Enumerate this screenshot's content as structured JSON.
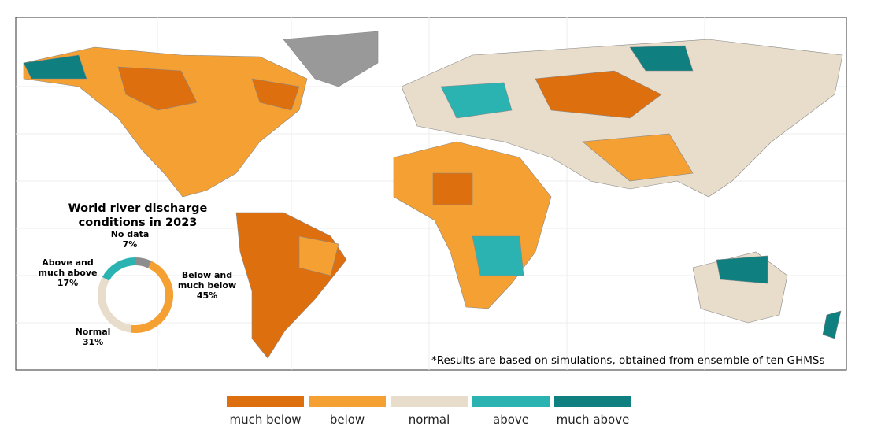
{
  "chart_data": {
    "type": "pie",
    "title": "World river discharge conditions in 2023",
    "categories": [
      "No data",
      "Below and much below",
      "Normal",
      "Above and much above"
    ],
    "values": [
      7,
      45,
      31,
      17
    ],
    "value_labels": [
      "7%",
      "45%",
      "31%",
      "17%"
    ],
    "colors": [
      "#8c8c8c",
      "#f5a033",
      "#e8dccb",
      "#2bb3b1"
    ]
  },
  "footnote": "*Results are based on simulations, obtained from ensemble of ten GHMSs",
  "legend": {
    "items": [
      {
        "label": "much below",
        "color": "#de6f0f"
      },
      {
        "label": "below",
        "color": "#f5a033"
      },
      {
        "label": "normal",
        "color": "#e8dccb"
      },
      {
        "label": "above",
        "color": "#2bb3b1"
      },
      {
        "label": "much above",
        "color": "#0f7f7f"
      }
    ]
  }
}
